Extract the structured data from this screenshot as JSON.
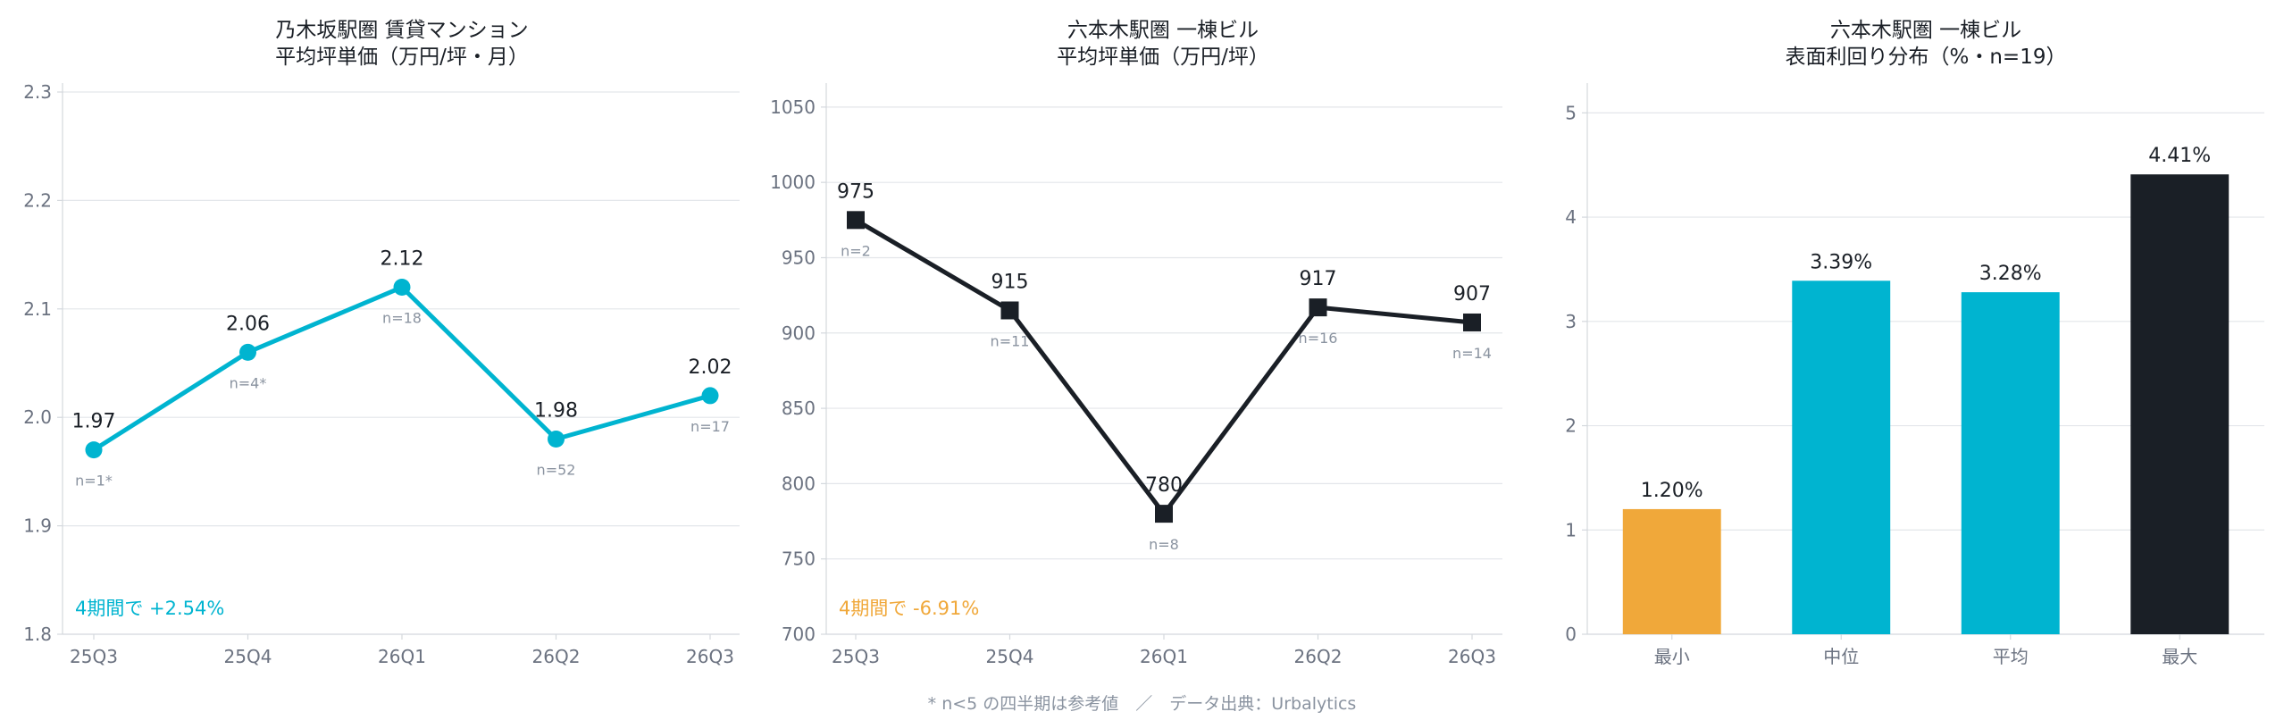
{
  "colors": {
    "cyan": "#00b4d0",
    "dark": "#1a1f26",
    "orange": "#f0a83a",
    "grid": "#e3e6ea",
    "axis": "#d4d8dd",
    "tick": "#6b7280",
    "note": "#8a93a0",
    "title": "#1a1f26"
  },
  "footer": "* n<5 の四半期は参考値　／　データ出典：Urbalytics",
  "chart_data": [
    {
      "type": "line",
      "title": [
        "乃木坂駅圏 賃貸マンション",
        "平均坪単価（万円/坪・月）"
      ],
      "categories": [
        "25Q3",
        "25Q4",
        "26Q1",
        "26Q2",
        "26Q3"
      ],
      "values": [
        1.97,
        2.06,
        2.12,
        1.98,
        2.02
      ],
      "value_labels": [
        "1.97",
        "2.06",
        "2.12",
        "1.98",
        "2.02"
      ],
      "n_labels": [
        "n=1*",
        "n=4*",
        "n=18",
        "n=52",
        "n=17"
      ],
      "ylim": [
        1.8,
        2.3
      ],
      "yticks": [
        1.8,
        1.9,
        2.0,
        2.1,
        2.2,
        2.3
      ],
      "ytick_labels": [
        "1.8",
        "1.9",
        "2.0",
        "2.1",
        "2.2",
        "2.3"
      ],
      "marker": "circle",
      "color": "#00b4d0",
      "annotation": "4期間で +2.54%",
      "annotation_color": "#00b4d0",
      "grid": true
    },
    {
      "type": "line",
      "title": [
        "六本木駅圏 一棟ビル",
        "平均坪単価（万円/坪）"
      ],
      "categories": [
        "25Q3",
        "25Q4",
        "26Q1",
        "26Q2",
        "26Q3"
      ],
      "values": [
        975,
        915,
        780,
        917,
        907
      ],
      "value_labels": [
        "975",
        "915",
        "780",
        "917",
        "907"
      ],
      "n_labels": [
        "n=2",
        "n=11",
        "n=8",
        "n=16",
        "n=14"
      ],
      "ylim": [
        700,
        1060
      ],
      "yticks": [
        700,
        750,
        800,
        850,
        900,
        950,
        1000,
        1050
      ],
      "ytick_labels": [
        "700",
        "750",
        "800",
        "850",
        "900",
        "950",
        "1000",
        "1050"
      ],
      "marker": "square",
      "color": "#1a1f26",
      "annotation": "4期間で -6.91%",
      "annotation_color": "#f0a83a",
      "grid": true
    },
    {
      "type": "bar",
      "title": [
        "六本木駅圏 一棟ビル",
        "表面利回り分布（%・n=19）"
      ],
      "categories": [
        "最小",
        "中位",
        "平均",
        "最大"
      ],
      "values": [
        1.2,
        3.39,
        3.28,
        4.41
      ],
      "value_labels": [
        "1.20%",
        "3.39%",
        "3.28%",
        "4.41%"
      ],
      "bar_colors": [
        "#f0a83a",
        "#00b4d0",
        "#00b4d0",
        "#1a1f26"
      ],
      "ylim": [
        0,
        5.2
      ],
      "yticks": [
        0,
        1,
        2,
        3,
        4,
        5
      ],
      "ytick_labels": [
        "0",
        "1",
        "2",
        "3",
        "4",
        "5"
      ],
      "grid": true
    }
  ]
}
